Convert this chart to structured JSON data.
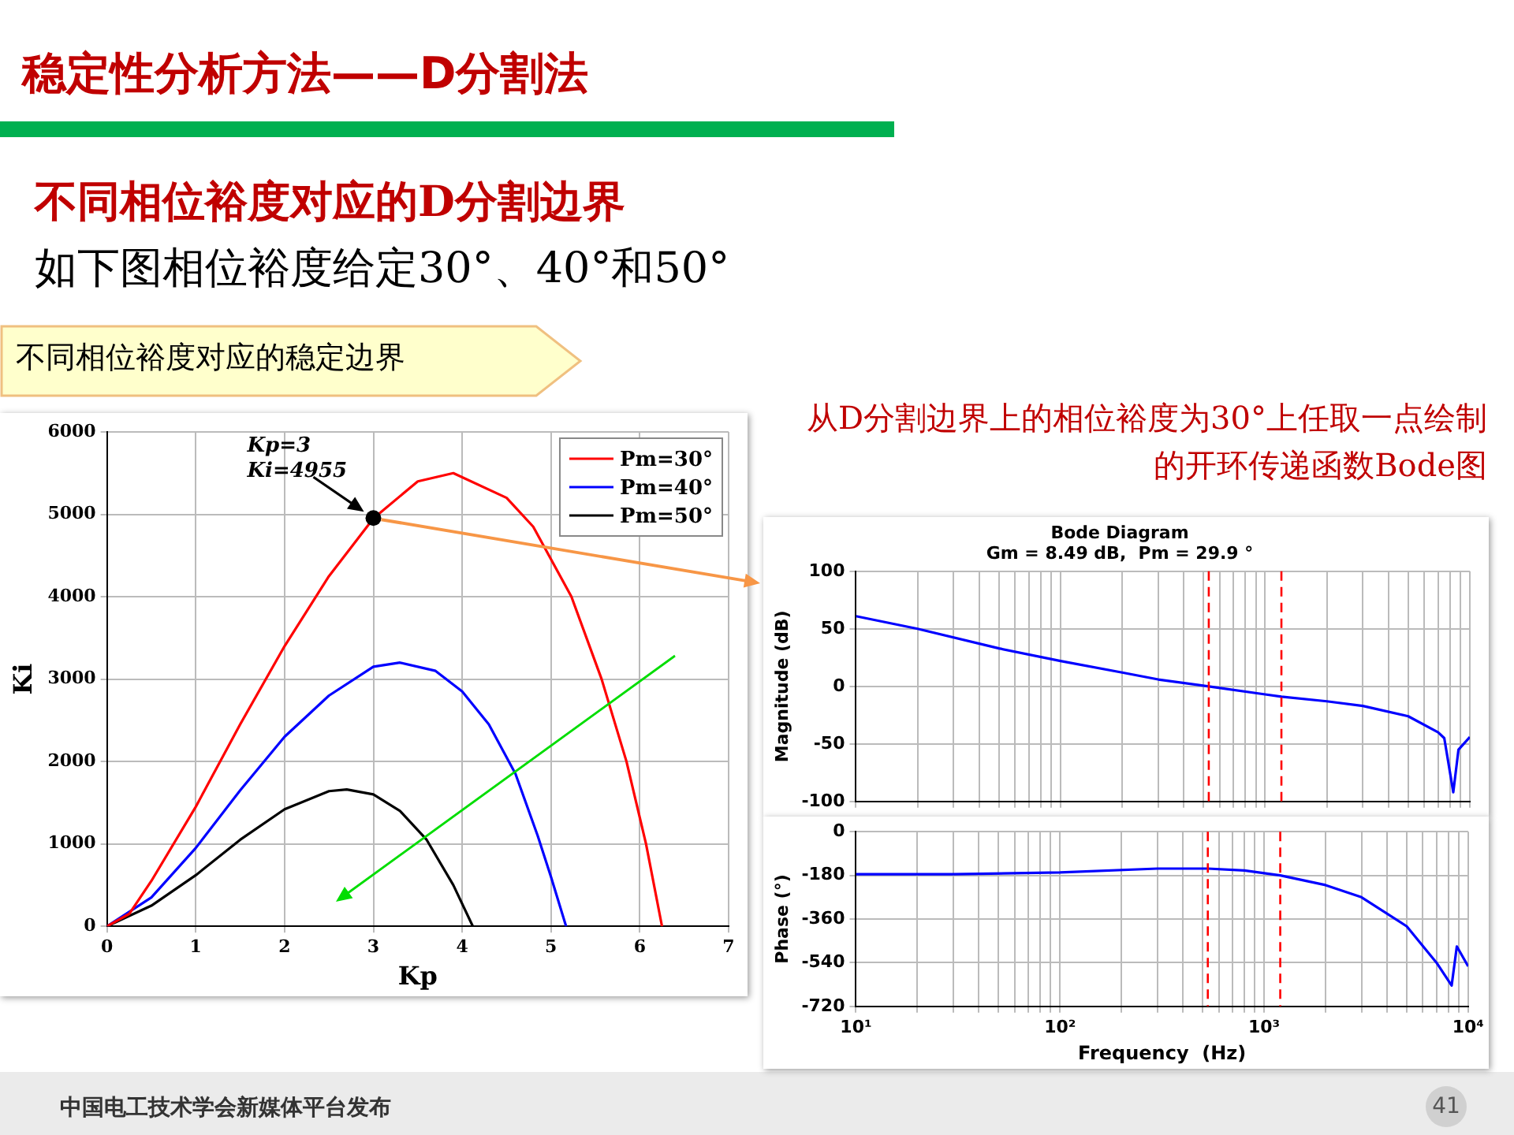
{
  "chart_data": [
    {
      "type": "line",
      "title": "稳定性分析方法——D分割法",
      "subtitle": "不同相位裕度对应的D分割边界",
      "xlabel": "Kp",
      "ylabel": "Ki",
      "xlim": [
        0,
        7
      ],
      "xticks": [
        0,
        1,
        2,
        3,
        4,
        5,
        6,
        7
      ],
      "ylim": [
        0,
        6000
      ],
      "yticks": [
        0,
        1000,
        2000,
        3000,
        4000,
        5000,
        6000
      ],
      "grid": true,
      "legend": "top right",
      "marker": "none",
      "line_style": "solid",
      "series": [
        {
          "name": "Pm=30°",
          "color": "#ff0000",
          "x": [
            0,
            0.25,
            0.5,
            1,
            1.5,
            2,
            2.5,
            3,
            3.5,
            3.9,
            4.5,
            4.8,
            5.23,
            5.57,
            5.85,
            6.07,
            6.25
          ],
          "values": [
            0,
            150,
            550,
            1450,
            2450,
            3400,
            4250,
            4950,
            5400,
            5500,
            5200,
            4850,
            4000,
            3000,
            2000,
            1000,
            0
          ]
        },
        {
          "name": "Pm=40°",
          "color": "#0000ff",
          "x": [
            0,
            0.5,
            1,
            1.5,
            2,
            2.5,
            3,
            3.3,
            3.7,
            4,
            4.3,
            4.6,
            4.85,
            5,
            5.17
          ],
          "values": [
            0,
            350,
            950,
            1650,
            2300,
            2800,
            3150,
            3200,
            3100,
            2850,
            2450,
            1850,
            1100,
            600,
            0
          ]
        },
        {
          "name": "Pm=50°",
          "color": "#000000",
          "x": [
            0,
            0.5,
            1,
            1.5,
            2,
            2.5,
            2.7,
            3,
            3.3,
            3.6,
            3.9,
            4.12
          ],
          "values": [
            0,
            250,
            620,
            1050,
            1420,
            1640,
            1660,
            1600,
            1400,
            1050,
            500,
            0
          ]
        }
      ],
      "annotations": [
        "如下图相位裕度给定30°、40°和50°",
        "不同相位裕度对应的稳定边界",
        "从D分割边界上的相位裕度为30°上任取一点绘制的开环传递函数Bode图",
        "中国电工技术学会新媒体平台发布",
        "41",
        {
          "text": "Kp=3\nKi=4955",
          "x": 3,
          "y": 4955
        }
      ]
    },
    {
      "type": "line",
      "title": "Bode Diagram",
      "subtitle": "Gm = 8.49 dB,  Pm = 29.9 °",
      "ylabel": "Magnitude (dB)",
      "log": "x",
      "xlim": [
        10,
        10000
      ],
      "xticks": [
        {
          "value": 10,
          "label": null
        },
        {
          "value": 20,
          "label": null
        },
        {
          "value": 30,
          "label": null
        },
        {
          "value": 40,
          "label": null
        },
        {
          "value": 50,
          "label": null
        },
        {
          "value": 60,
          "label": null
        },
        {
          "value": 70,
          "label": null
        },
        {
          "value": 80,
          "label": null
        },
        {
          "value": 90,
          "label": null
        },
        {
          "value": 100,
          "label": null
        },
        {
          "value": 200,
          "label": null
        },
        {
          "value": 300,
          "label": null
        },
        {
          "value": 400,
          "label": null
        },
        {
          "value": 500,
          "label": null
        },
        {
          "value": 600,
          "label": null
        },
        {
          "value": 700,
          "label": null
        },
        {
          "value": 800,
          "label": null
        },
        {
          "value": 900,
          "label": null
        },
        {
          "value": 1000,
          "label": null
        },
        {
          "value": 2000,
          "label": null
        },
        {
          "value": 3000,
          "label": null
        },
        {
          "value": 4000,
          "label": null
        },
        {
          "value": 5000,
          "label": null
        },
        {
          "value": 6000,
          "label": null
        },
        {
          "value": 7000,
          "label": null
        },
        {
          "value": 8000,
          "label": null
        },
        {
          "value": 9000,
          "label": null
        },
        {
          "value": 10000,
          "label": null
        }
      ],
      "ylim": [
        -100,
        100
      ],
      "yticks": [
        -100,
        -50,
        0,
        50,
        100
      ],
      "grid": true,
      "tick_labels": "y",
      "marker": "none",
      "line_style": "solid",
      "series": [
        {
          "color": "#0000ff",
          "x": [
            10,
            20,
            50,
            100,
            200,
            300,
            530,
            1000,
            1200,
            2000,
            3000,
            5000,
            7000,
            7500,
            8300,
            8800,
            10000
          ],
          "values": [
            61,
            50,
            33,
            22,
            12,
            6,
            0,
            -7,
            -9,
            -13,
            -17,
            -26,
            -40,
            -45,
            -92,
            -55,
            -44
          ]
        }
      ],
      "ref_lines": [
        {
          "axis": "x",
          "value": 530,
          "color": "#ff0000",
          "line_style": "dashed"
        },
        {
          "axis": "x",
          "value": 1200,
          "color": "#ff0000",
          "line_style": "dashed"
        }
      ]
    },
    {
      "type": "line",
      "xlabel": "Frequency  (Hz)",
      "ylabel": "Phase (°)",
      "log": "x",
      "xlim": [
        10,
        10000
      ],
      "xticks": [
        {
          "value": 10,
          "label": "10¹"
        },
        {
          "value": 20,
          "label": null
        },
        {
          "value": 30,
          "label": null
        },
        {
          "value": 40,
          "label": null
        },
        {
          "value": 50,
          "label": null
        },
        {
          "value": 60,
          "label": null
        },
        {
          "value": 70,
          "label": null
        },
        {
          "value": 80,
          "label": null
        },
        {
          "value": 90,
          "label": null
        },
        {
          "value": 100,
          "label": "10²"
        },
        {
          "value": 200,
          "label": null
        },
        {
          "value": 300,
          "label": null
        },
        {
          "value": 400,
          "label": null
        },
        {
          "value": 500,
          "label": null
        },
        {
          "value": 600,
          "label": null
        },
        {
          "value": 700,
          "label": null
        },
        {
          "value": 800,
          "label": null
        },
        {
          "value": 900,
          "label": null
        },
        {
          "value": 1000,
          "label": "10³"
        },
        {
          "value": 2000,
          "label": null
        },
        {
          "value": 3000,
          "label": null
        },
        {
          "value": 4000,
          "label": null
        },
        {
          "value": 5000,
          "label": null
        },
        {
          "value": 6000,
          "label": null
        },
        {
          "value": 7000,
          "label": null
        },
        {
          "value": 8000,
          "label": null
        },
        {
          "value": 9000,
          "label": null
        },
        {
          "value": 10000,
          "label": "10⁴"
        }
      ],
      "ylim": [
        -720,
        0
      ],
      "yticks": [
        -720,
        -540,
        -360,
        -180,
        0
      ],
      "grid": true,
      "marker": "none",
      "line_style": "solid",
      "series": [
        {
          "color": "#0000ff",
          "x": [
            10,
            30,
            100,
            300,
            530,
            800,
            1200,
            2000,
            3000,
            5000,
            7000,
            8300,
            8800,
            10000
          ],
          "values": [
            -175,
            -175,
            -168,
            -152,
            -152,
            -160,
            -180,
            -220,
            -270,
            -390,
            -540,
            -634,
            -473,
            -555
          ]
        }
      ],
      "ref_lines": [
        {
          "axis": "x",
          "value": 530,
          "color": "#ff0000",
          "line_style": "dashed"
        },
        {
          "axis": "x",
          "value": 1200,
          "color": "#ff0000",
          "line_style": "dashed"
        }
      ]
    }
  ]
}
